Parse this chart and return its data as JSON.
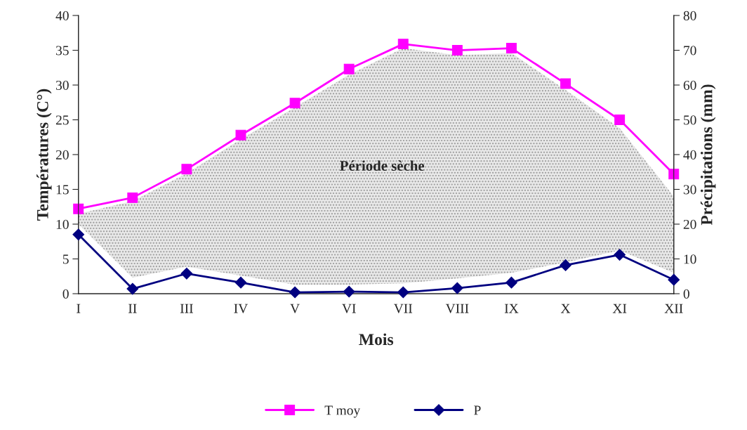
{
  "chart_data": {
    "type": "line",
    "categories": [
      "I",
      "II",
      "III",
      "IV",
      "V",
      "VI",
      "VII",
      "VIII",
      "IX",
      "X",
      "XI",
      "XII"
    ],
    "series": [
      {
        "name": "T moy",
        "color": "#ff00ff",
        "marker": "square",
        "values": [
          12.2,
          13.8,
          17.9,
          22.8,
          27.4,
          32.3,
          35.9,
          35.0,
          35.3,
          30.2,
          25.0,
          17.2
        ],
        "lower": [
          10,
          2.3,
          3.9,
          2.6,
          1.3,
          1.3,
          1.5,
          2.2,
          3.0,
          4.5,
          6.2,
          3
        ],
        "upper": [
          11.5,
          13.3,
          17.3,
          22.2,
          26.8,
          31.5,
          35.3,
          34.3,
          34.6,
          29.3,
          23.8,
          14
        ]
      },
      {
        "name": "P",
        "color": "#000080",
        "marker": "diamond",
        "axis": "y2",
        "values": [
          17,
          1.4,
          5.8,
          3.2,
          0.4,
          0.6,
          0.4,
          1.6,
          3.2,
          8.2,
          11.2,
          4
        ]
      }
    ],
    "xlabel": "Mois",
    "ylabel": "Températures (C°)",
    "y2label": "Précipitations (mm)",
    "ylim": [
      0,
      40
    ],
    "yticks": [
      0,
      5,
      10,
      15,
      20,
      25,
      30,
      35,
      40
    ],
    "y2lim": [
      0,
      80
    ],
    "y2ticks": [
      0,
      10,
      20,
      30,
      40,
      50,
      60,
      70,
      80
    ],
    "annotations": [
      "Période sèche"
    ],
    "legend": "bottom",
    "grid": false,
    "line_style": "solid"
  }
}
